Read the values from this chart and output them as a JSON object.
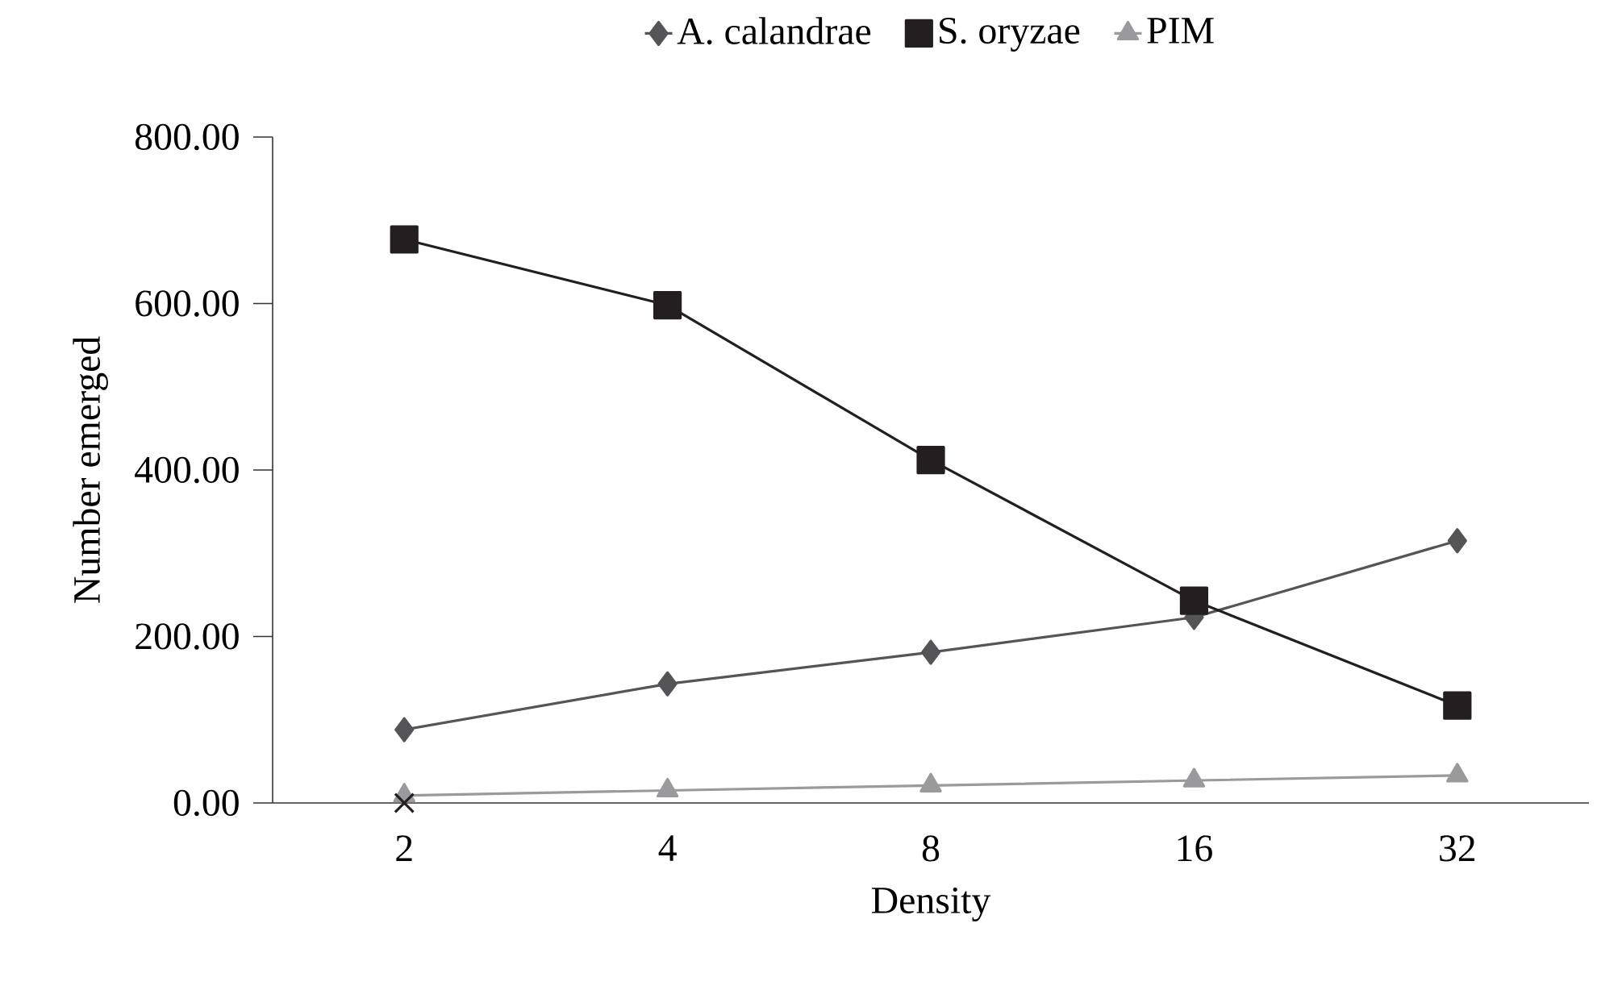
{
  "chart_data": {
    "type": "line",
    "xlabel": "Density",
    "ylabel": "Number emerged",
    "categories": [
      "2",
      "4",
      "8",
      "16",
      "32"
    ],
    "series": [
      {
        "name": "A. calandrae",
        "color": "#555557",
        "marker": "diamond",
        "values": [
          88,
          143,
          181,
          223,
          315
        ]
      },
      {
        "name": "S. oryzae",
        "color": "#231f20",
        "marker": "square",
        "values": [
          677,
          598,
          412,
          243,
          117
        ]
      },
      {
        "name": "PIM",
        "color": "#9a9a9c",
        "marker": "triangle",
        "values": [
          9,
          15,
          21,
          27,
          33
        ]
      },
      {
        "type": "scatter",
        "color": "#231f20",
        "marker": "cross",
        "values": [
          0,
          null,
          null,
          null,
          null
        ]
      }
    ],
    "ylim": [
      0,
      800
    ],
    "yticks": [
      {
        "value": 0,
        "label": "0.00"
      },
      {
        "value": 200,
        "label": "200.00"
      },
      {
        "value": 400,
        "label": "400.00"
      },
      {
        "value": 600,
        "label": "600.00"
      },
      {
        "value": 800,
        "label": "800.00"
      }
    ],
    "grid": false,
    "legend": "top"
  }
}
